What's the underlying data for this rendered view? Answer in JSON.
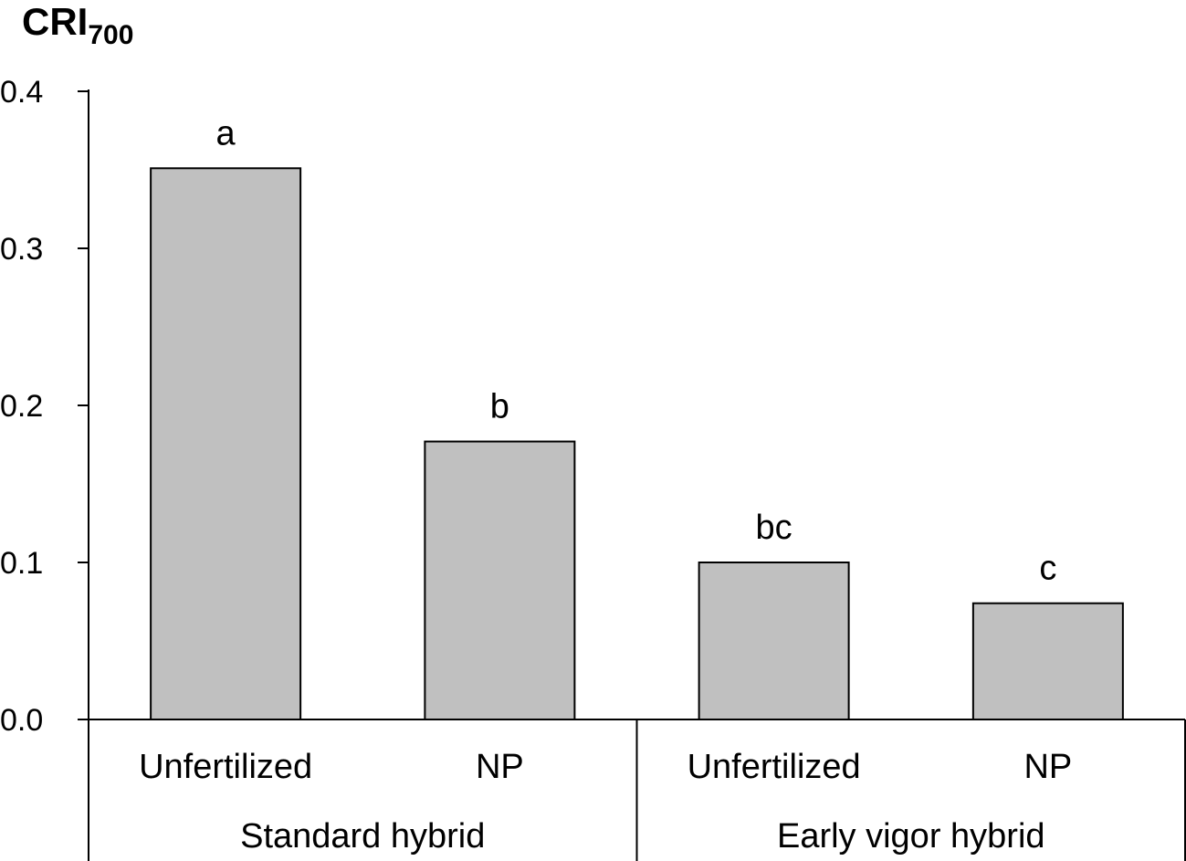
{
  "chart_data": {
    "type": "bar",
    "title": "CRI",
    "title_subscript": "700",
    "ylim": [
      0,
      0.4
    ],
    "yticks": [
      "0.0",
      "0.1",
      "0.2",
      "0.3",
      "0.4"
    ],
    "grid": false,
    "bar_color": "#c0c0c0",
    "categories": [
      "Unfertilized",
      "NP",
      "Unfertilized",
      "NP"
    ],
    "groups": [
      {
        "label": "Standard hybrid",
        "span": [
          0,
          1
        ]
      },
      {
        "label": "Early vigor hybrid",
        "span": [
          2,
          3
        ]
      }
    ],
    "values": [
      0.351,
      0.177,
      0.1,
      0.074
    ],
    "significance_letters": [
      "a",
      "b",
      "bc",
      "c"
    ]
  }
}
